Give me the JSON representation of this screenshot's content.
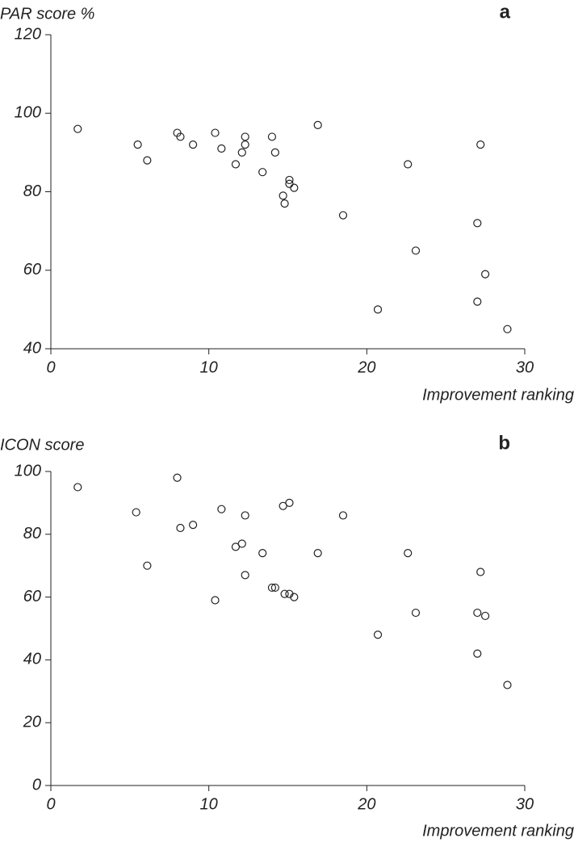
{
  "chart_data": [
    {
      "type": "scatter",
      "ylabel": "PAR score %",
      "panel_label": "a",
      "xlabel": "Improvement ranking",
      "x": [
        1.7,
        5.5,
        6.1,
        8.0,
        8.2,
        9.0,
        10.4,
        10.8,
        11.7,
        12.1,
        12.3,
        12.3,
        13.4,
        14.0,
        14.2,
        14.7,
        14.8,
        15.1,
        15.1,
        15.4,
        16.9,
        18.5,
        20.7,
        22.6,
        23.1,
        27.0,
        27.2,
        27.0,
        27.5,
        28.9
      ],
      "values": [
        96,
        92,
        88,
        95,
        94,
        92,
        95,
        91,
        87,
        90,
        94,
        92,
        85,
        94,
        90,
        79,
        77,
        83,
        82,
        81,
        97,
        74,
        50,
        87,
        65,
        72,
        92,
        52,
        59,
        45
      ],
      "xlim": [
        0,
        30
      ],
      "xticks": [
        0,
        10,
        20,
        30
      ],
      "ylim": [
        40,
        120
      ],
      "yticks": [
        40,
        60,
        80,
        100,
        120
      ],
      "color": "#222222"
    },
    {
      "type": "scatter",
      "ylabel": "ICON score",
      "panel_label": "b",
      "xlabel": "Improvement ranking",
      "x": [
        1.7,
        5.4,
        6.1,
        8.0,
        8.2,
        9.0,
        10.4,
        10.8,
        11.7,
        12.1,
        12.3,
        12.3,
        13.4,
        14.0,
        14.2,
        14.7,
        14.8,
        15.1,
        15.1,
        15.4,
        16.9,
        18.5,
        20.7,
        22.6,
        23.1,
        27.0,
        27.2,
        27.0,
        27.5,
        28.9
      ],
      "values": [
        95,
        87,
        70,
        98,
        82,
        83,
        59,
        88,
        76,
        77,
        86,
        67,
        74,
        63,
        63,
        89,
        61,
        90,
        61,
        60,
        74,
        86,
        48,
        74,
        55,
        55,
        68,
        42,
        54,
        32
      ],
      "xlim": [
        0,
        30
      ],
      "xticks": [
        0,
        10,
        20,
        30
      ],
      "ylim": [
        0,
        100
      ],
      "yticks": [
        0,
        20,
        40,
        60,
        80,
        100
      ],
      "color": "#222222"
    }
  ]
}
